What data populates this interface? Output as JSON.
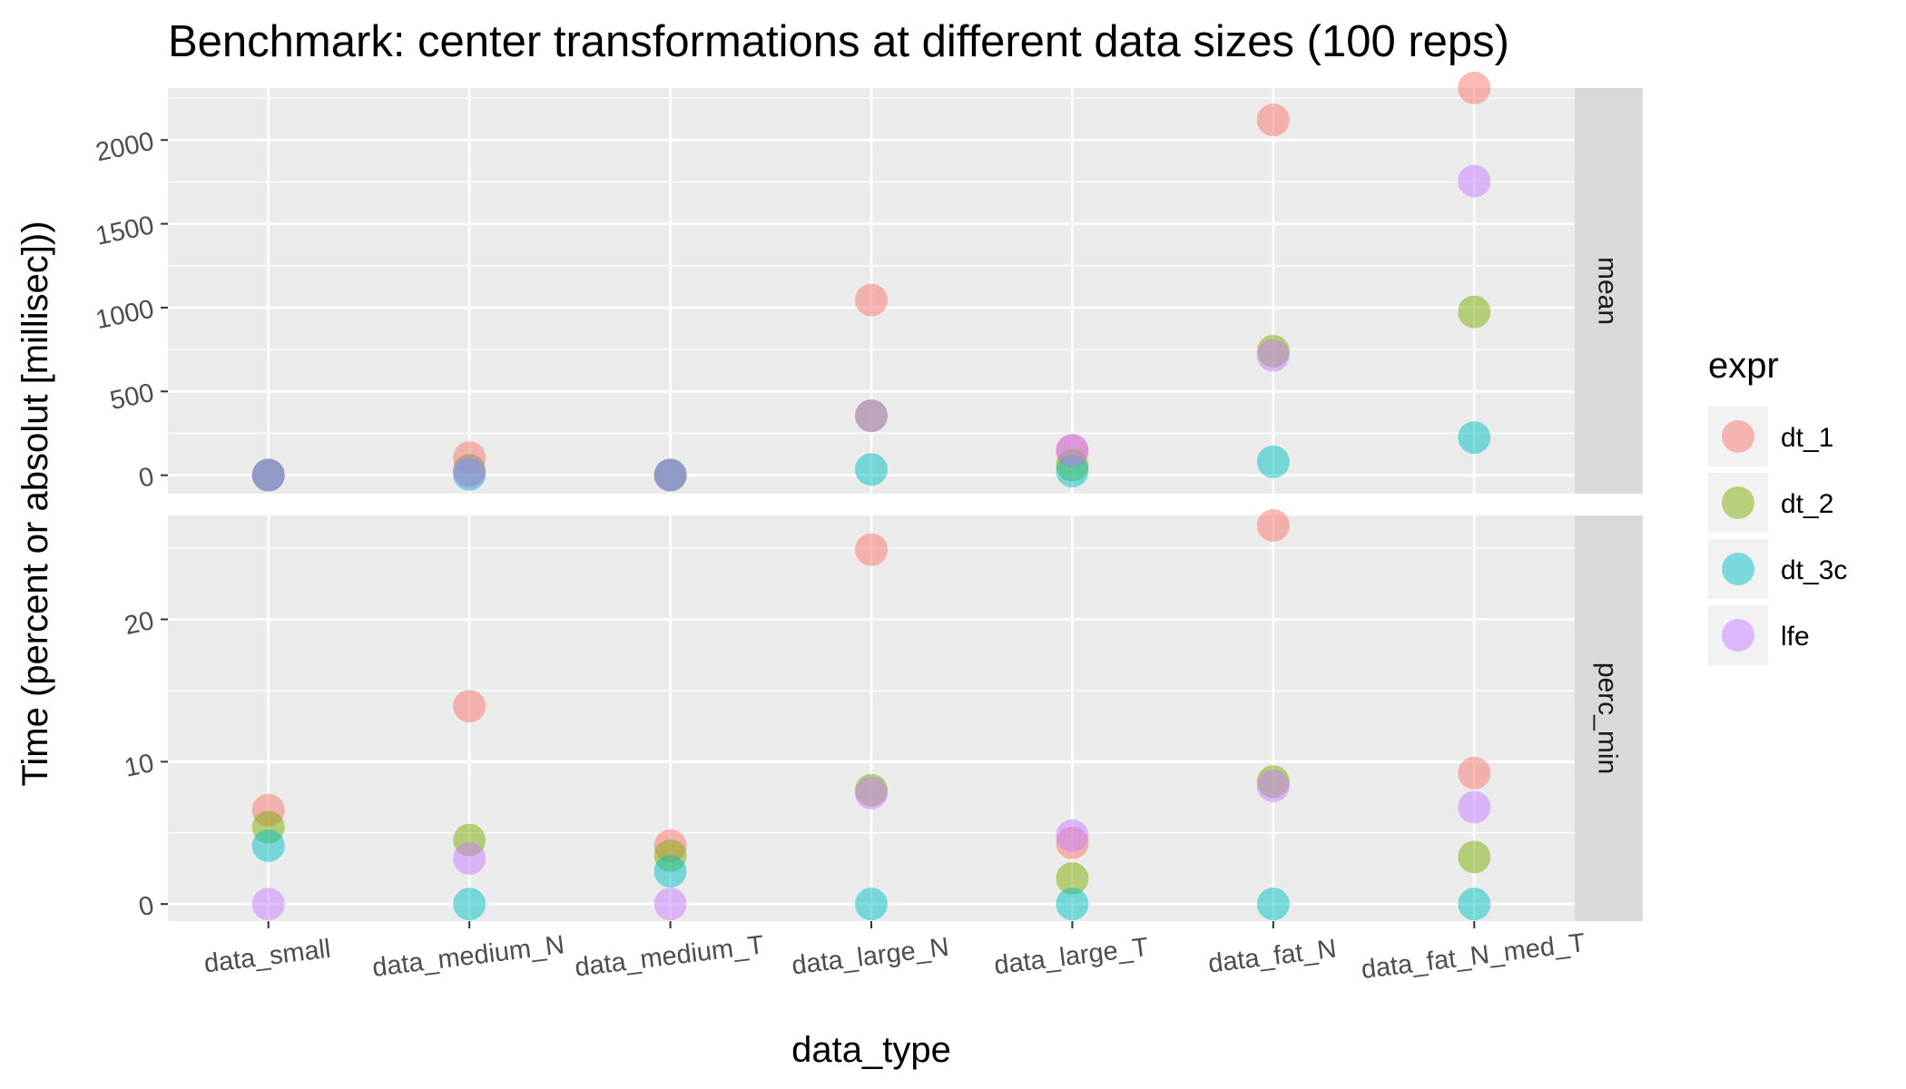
{
  "chart_data": {
    "type": "scatter",
    "title": "Benchmark: center transformations at different data sizes (100 reps)",
    "xlabel": "data_type",
    "ylabel": "Time (percent or absolut [millisec]))",
    "categories": [
      "data_small",
      "data_medium_N",
      "data_medium_T",
      "data_large_N",
      "data_large_T",
      "data_fat_N",
      "data_fat_N_med_T"
    ],
    "legend": {
      "title": "expr",
      "placement": "right",
      "entries": [
        "dt_1",
        "dt_2",
        "dt_3c",
        "lfe"
      ]
    },
    "colors": {
      "dt_1": "#F8766D",
      "dt_2": "#7CAE00",
      "dt_3c": "#00BFC4",
      "lfe": "#C77CFF"
    },
    "grid": true,
    "panels": [
      {
        "strip": "mean",
        "ylim": [
          -110,
          2310
        ],
        "yticks": [
          0,
          500,
          1000,
          1500,
          2000
        ],
        "yticklabels": [
          "0",
          "500",
          "1000",
          "1500",
          "2000"
        ],
        "series": [
          {
            "name": "dt_1",
            "values": [
              1,
              105,
              1,
              1045,
              145,
              2120,
              2310
            ]
          },
          {
            "name": "dt_2",
            "values": [
              1,
              30,
              1,
              355,
              60,
              740,
              975
            ]
          },
          {
            "name": "dt_3c",
            "values": [
              1,
              5,
              1,
              35,
              25,
              80,
              225
            ]
          },
          {
            "name": "lfe",
            "values": [
              1,
              20,
              1,
              355,
              150,
              715,
              1755
            ]
          }
        ]
      },
      {
        "strip": "perc_min",
        "ylim": [
          -1.2,
          27.3
        ],
        "yticks": [
          0,
          10,
          20
        ],
        "yticklabels": [
          "0",
          "10",
          "20"
        ],
        "series": [
          {
            "name": "dt_1",
            "values": [
              6.6,
              13.9,
              4.1,
              24.9,
              4.3,
              26.6,
              9.2
            ]
          },
          {
            "name": "dt_2",
            "values": [
              5.4,
              4.5,
              3.4,
              8.0,
              1.8,
              8.6,
              3.3
            ]
          },
          {
            "name": "dt_3c",
            "values": [
              4.1,
              0.0,
              2.3,
              0.0,
              0.0,
              0.0,
              0.0
            ]
          },
          {
            "name": "lfe",
            "values": [
              0.0,
              3.2,
              0.0,
              7.8,
              4.8,
              8.3,
              6.8
            ]
          }
        ]
      }
    ]
  }
}
